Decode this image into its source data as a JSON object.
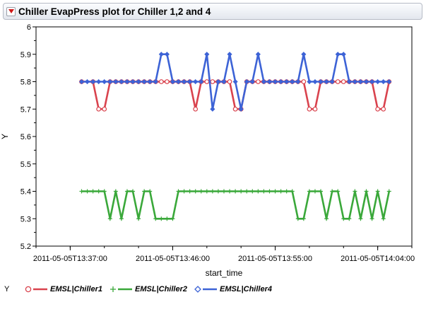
{
  "title": "Chiller EvapPress plot for Chiller 1,2 and 4",
  "chart_data": {
    "type": "line",
    "xlabel": "start_time",
    "ylabel": "Y",
    "ylim": [
      5.2,
      6.0
    ],
    "yticks": [
      "6",
      "5.9",
      "5.8",
      "5.7",
      "5.6",
      "5.5",
      "5.4",
      "5.3",
      "5.2"
    ],
    "xlim": [
      "2011-05-05T13:34:00",
      "2011-05-05T14:07:00"
    ],
    "xticks": [
      "2011-05-05T13:37:00",
      "2011-05-05T13:46:00",
      "2011-05-05T13:55:00",
      "2011-05-05T14:04:00"
    ],
    "series": [
      {
        "name": "EMSL|Chiller1",
        "color": "#d9434e",
        "marker": "circle",
        "x": [
          "13:38:00",
          "13:39:00",
          "13:39:30",
          "13:40:00",
          "13:40:30",
          "13:41:00",
          "13:41:30",
          "13:42:00",
          "13:42:30",
          "13:43:00",
          "13:43:30",
          "13:44:00",
          "13:44:30",
          "13:45:00",
          "13:45:30",
          "13:46:00",
          "13:46:30",
          "13:47:00",
          "13:47:30",
          "13:48:00",
          "13:48:30",
          "13:49:00",
          "13:49:30",
          "13:50:00",
          "13:50:30",
          "13:51:00",
          "13:51:30",
          "13:52:00",
          "13:52:30",
          "13:53:00",
          "13:53:30",
          "13:54:00",
          "13:54:30",
          "13:55:00",
          "13:55:30",
          "13:56:00",
          "13:56:30",
          "13:57:00",
          "13:57:30",
          "13:58:00",
          "13:58:30",
          "13:59:00",
          "13:59:30",
          "14:00:00",
          "14:00:30",
          "14:01:00",
          "14:01:30",
          "14:02:00",
          "14:02:30",
          "14:03:00",
          "14:03:30",
          "14:04:00",
          "14:04:30",
          "14:05:00"
        ],
        "y": [
          5.8,
          5.8,
          5.7,
          5.7,
          5.8,
          5.8,
          5.8,
          5.8,
          5.8,
          5.8,
          5.8,
          5.8,
          5.8,
          5.8,
          5.8,
          5.8,
          5.8,
          5.8,
          5.8,
          5.7,
          5.8,
          5.8,
          5.8,
          5.8,
          5.8,
          5.8,
          5.7,
          5.7,
          5.8,
          5.8,
          5.8,
          5.8,
          5.8,
          5.8,
          5.8,
          5.8,
          5.8,
          5.8,
          5.8,
          5.7,
          5.7,
          5.8,
          5.8,
          5.8,
          5.8,
          5.8,
          5.8,
          5.8,
          5.8,
          5.8,
          5.8,
          5.7,
          5.7,
          5.8
        ]
      },
      {
        "name": "EMSL|Chiller2",
        "color": "#3aa83a",
        "marker": "plus",
        "x": [
          "13:38:00",
          "13:38:30",
          "13:39:00",
          "13:39:30",
          "13:40:00",
          "13:40:30",
          "13:41:00",
          "13:41:30",
          "13:42:00",
          "13:42:30",
          "13:43:00",
          "13:43:30",
          "13:44:00",
          "13:44:30",
          "13:45:00",
          "13:45:30",
          "13:46:00",
          "13:46:30",
          "13:47:00",
          "13:47:30",
          "13:48:00",
          "13:48:30",
          "13:49:00",
          "13:49:30",
          "13:50:00",
          "13:50:30",
          "13:51:00",
          "13:51:30",
          "13:52:00",
          "13:52:30",
          "13:53:00",
          "13:53:30",
          "13:54:00",
          "13:54:30",
          "13:55:00",
          "13:55:30",
          "13:56:00",
          "13:56:30",
          "13:57:00",
          "13:57:30",
          "13:58:00",
          "13:58:30",
          "13:59:00",
          "13:59:30",
          "14:00:00",
          "14:00:30",
          "14:01:00",
          "14:01:30",
          "14:02:00",
          "14:02:30",
          "14:03:00",
          "14:03:30",
          "14:04:00",
          "14:04:30",
          "14:05:00"
        ],
        "y": [
          5.4,
          5.4,
          5.4,
          5.4,
          5.4,
          5.3,
          5.4,
          5.3,
          5.4,
          5.4,
          5.3,
          5.4,
          5.4,
          5.3,
          5.3,
          5.3,
          5.3,
          5.4,
          5.4,
          5.4,
          5.4,
          5.4,
          5.4,
          5.4,
          5.4,
          5.4,
          5.4,
          5.4,
          5.4,
          5.4,
          5.4,
          5.4,
          5.4,
          5.4,
          5.4,
          5.4,
          5.4,
          5.4,
          5.3,
          5.3,
          5.4,
          5.4,
          5.4,
          5.3,
          5.4,
          5.4,
          5.3,
          5.3,
          5.4,
          5.3,
          5.4,
          5.3,
          5.4,
          5.3,
          5.4
        ]
      },
      {
        "name": "EMSL|Chiller4",
        "color": "#3d63d6",
        "marker": "diamond",
        "x": [
          "13:38:00",
          "13:38:30",
          "13:39:00",
          "13:39:30",
          "13:40:00",
          "13:40:30",
          "13:41:00",
          "13:41:30",
          "13:42:00",
          "13:42:30",
          "13:43:00",
          "13:43:30",
          "13:44:00",
          "13:44:30",
          "13:45:00",
          "13:45:30",
          "13:46:00",
          "13:46:30",
          "13:47:00",
          "13:47:30",
          "13:48:00",
          "13:48:30",
          "13:49:00",
          "13:49:30",
          "13:50:00",
          "13:50:30",
          "13:51:00",
          "13:51:30",
          "13:52:00",
          "13:52:30",
          "13:53:00",
          "13:53:30",
          "13:54:00",
          "13:54:30",
          "13:55:00",
          "13:55:30",
          "13:56:00",
          "13:56:30",
          "13:57:00",
          "13:57:30",
          "13:58:00",
          "13:58:30",
          "13:59:00",
          "13:59:30",
          "14:00:00",
          "14:00:30",
          "14:01:00",
          "14:01:30",
          "14:02:00",
          "14:02:30",
          "14:03:00",
          "14:03:30",
          "14:04:00",
          "14:04:30",
          "14:05:00"
        ],
        "y": [
          5.8,
          5.8,
          5.8,
          5.8,
          5.8,
          5.8,
          5.8,
          5.8,
          5.8,
          5.8,
          5.8,
          5.8,
          5.8,
          5.8,
          5.9,
          5.9,
          5.8,
          5.8,
          5.8,
          5.8,
          5.8,
          5.8,
          5.9,
          5.7,
          5.8,
          5.8,
          5.9,
          5.8,
          5.7,
          5.8,
          5.8,
          5.9,
          5.8,
          5.8,
          5.8,
          5.8,
          5.8,
          5.8,
          5.8,
          5.9,
          5.8,
          5.8,
          5.8,
          5.8,
          5.8,
          5.9,
          5.9,
          5.8,
          5.8,
          5.8,
          5.8,
          5.8,
          5.8,
          5.8,
          5.8
        ]
      }
    ],
    "grid": false,
    "legend_position": "bottom"
  }
}
